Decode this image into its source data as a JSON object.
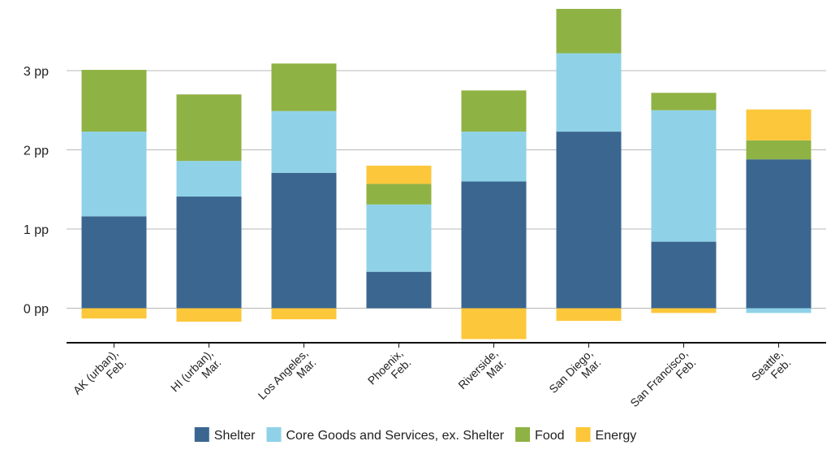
{
  "chart_data": {
    "type": "bar",
    "stacked": true,
    "title": "",
    "xlabel": "",
    "ylabel": "",
    "ylim": [
      -0.45,
      3.8
    ],
    "yticks": [
      0,
      1,
      2,
      3
    ],
    "ytick_labels": [
      "0 pp",
      "1 pp",
      "2 pp",
      "3 pp"
    ],
    "grid": true,
    "legend_position": "bottom",
    "categories": [
      [
        "AK (urban),",
        "Feb."
      ],
      [
        "HI (urban),",
        "Mar."
      ],
      [
        "Los Angeles,",
        "Mar."
      ],
      [
        "Phoenix,",
        "Feb."
      ],
      [
        "Riverside,",
        "Mar."
      ],
      [
        "San Diego,",
        "Mar."
      ],
      [
        "San Francisco,",
        "Feb."
      ],
      [
        "Seattle,",
        "Feb."
      ]
    ],
    "series": [
      {
        "name": "Shelter",
        "color": "#3b6690",
        "values": [
          1.16,
          1.41,
          1.71,
          0.46,
          1.6,
          2.23,
          0.84,
          1.88
        ]
      },
      {
        "name": "Core Goods and Services, ex. Shelter",
        "color": "#8fd2e8",
        "values": [
          1.07,
          0.45,
          0.78,
          0.85,
          0.63,
          0.99,
          1.66,
          -0.06
        ]
      },
      {
        "name": "Food",
        "color": "#8fb244",
        "values": [
          0.78,
          0.84,
          0.6,
          0.26,
          0.52,
          0.56,
          0.22,
          0.24
        ]
      },
      {
        "name": "Energy",
        "color": "#fcc73a",
        "values": [
          -0.13,
          -0.17,
          -0.14,
          0.23,
          -0.39,
          -0.16,
          -0.06,
          0.39
        ]
      }
    ]
  }
}
